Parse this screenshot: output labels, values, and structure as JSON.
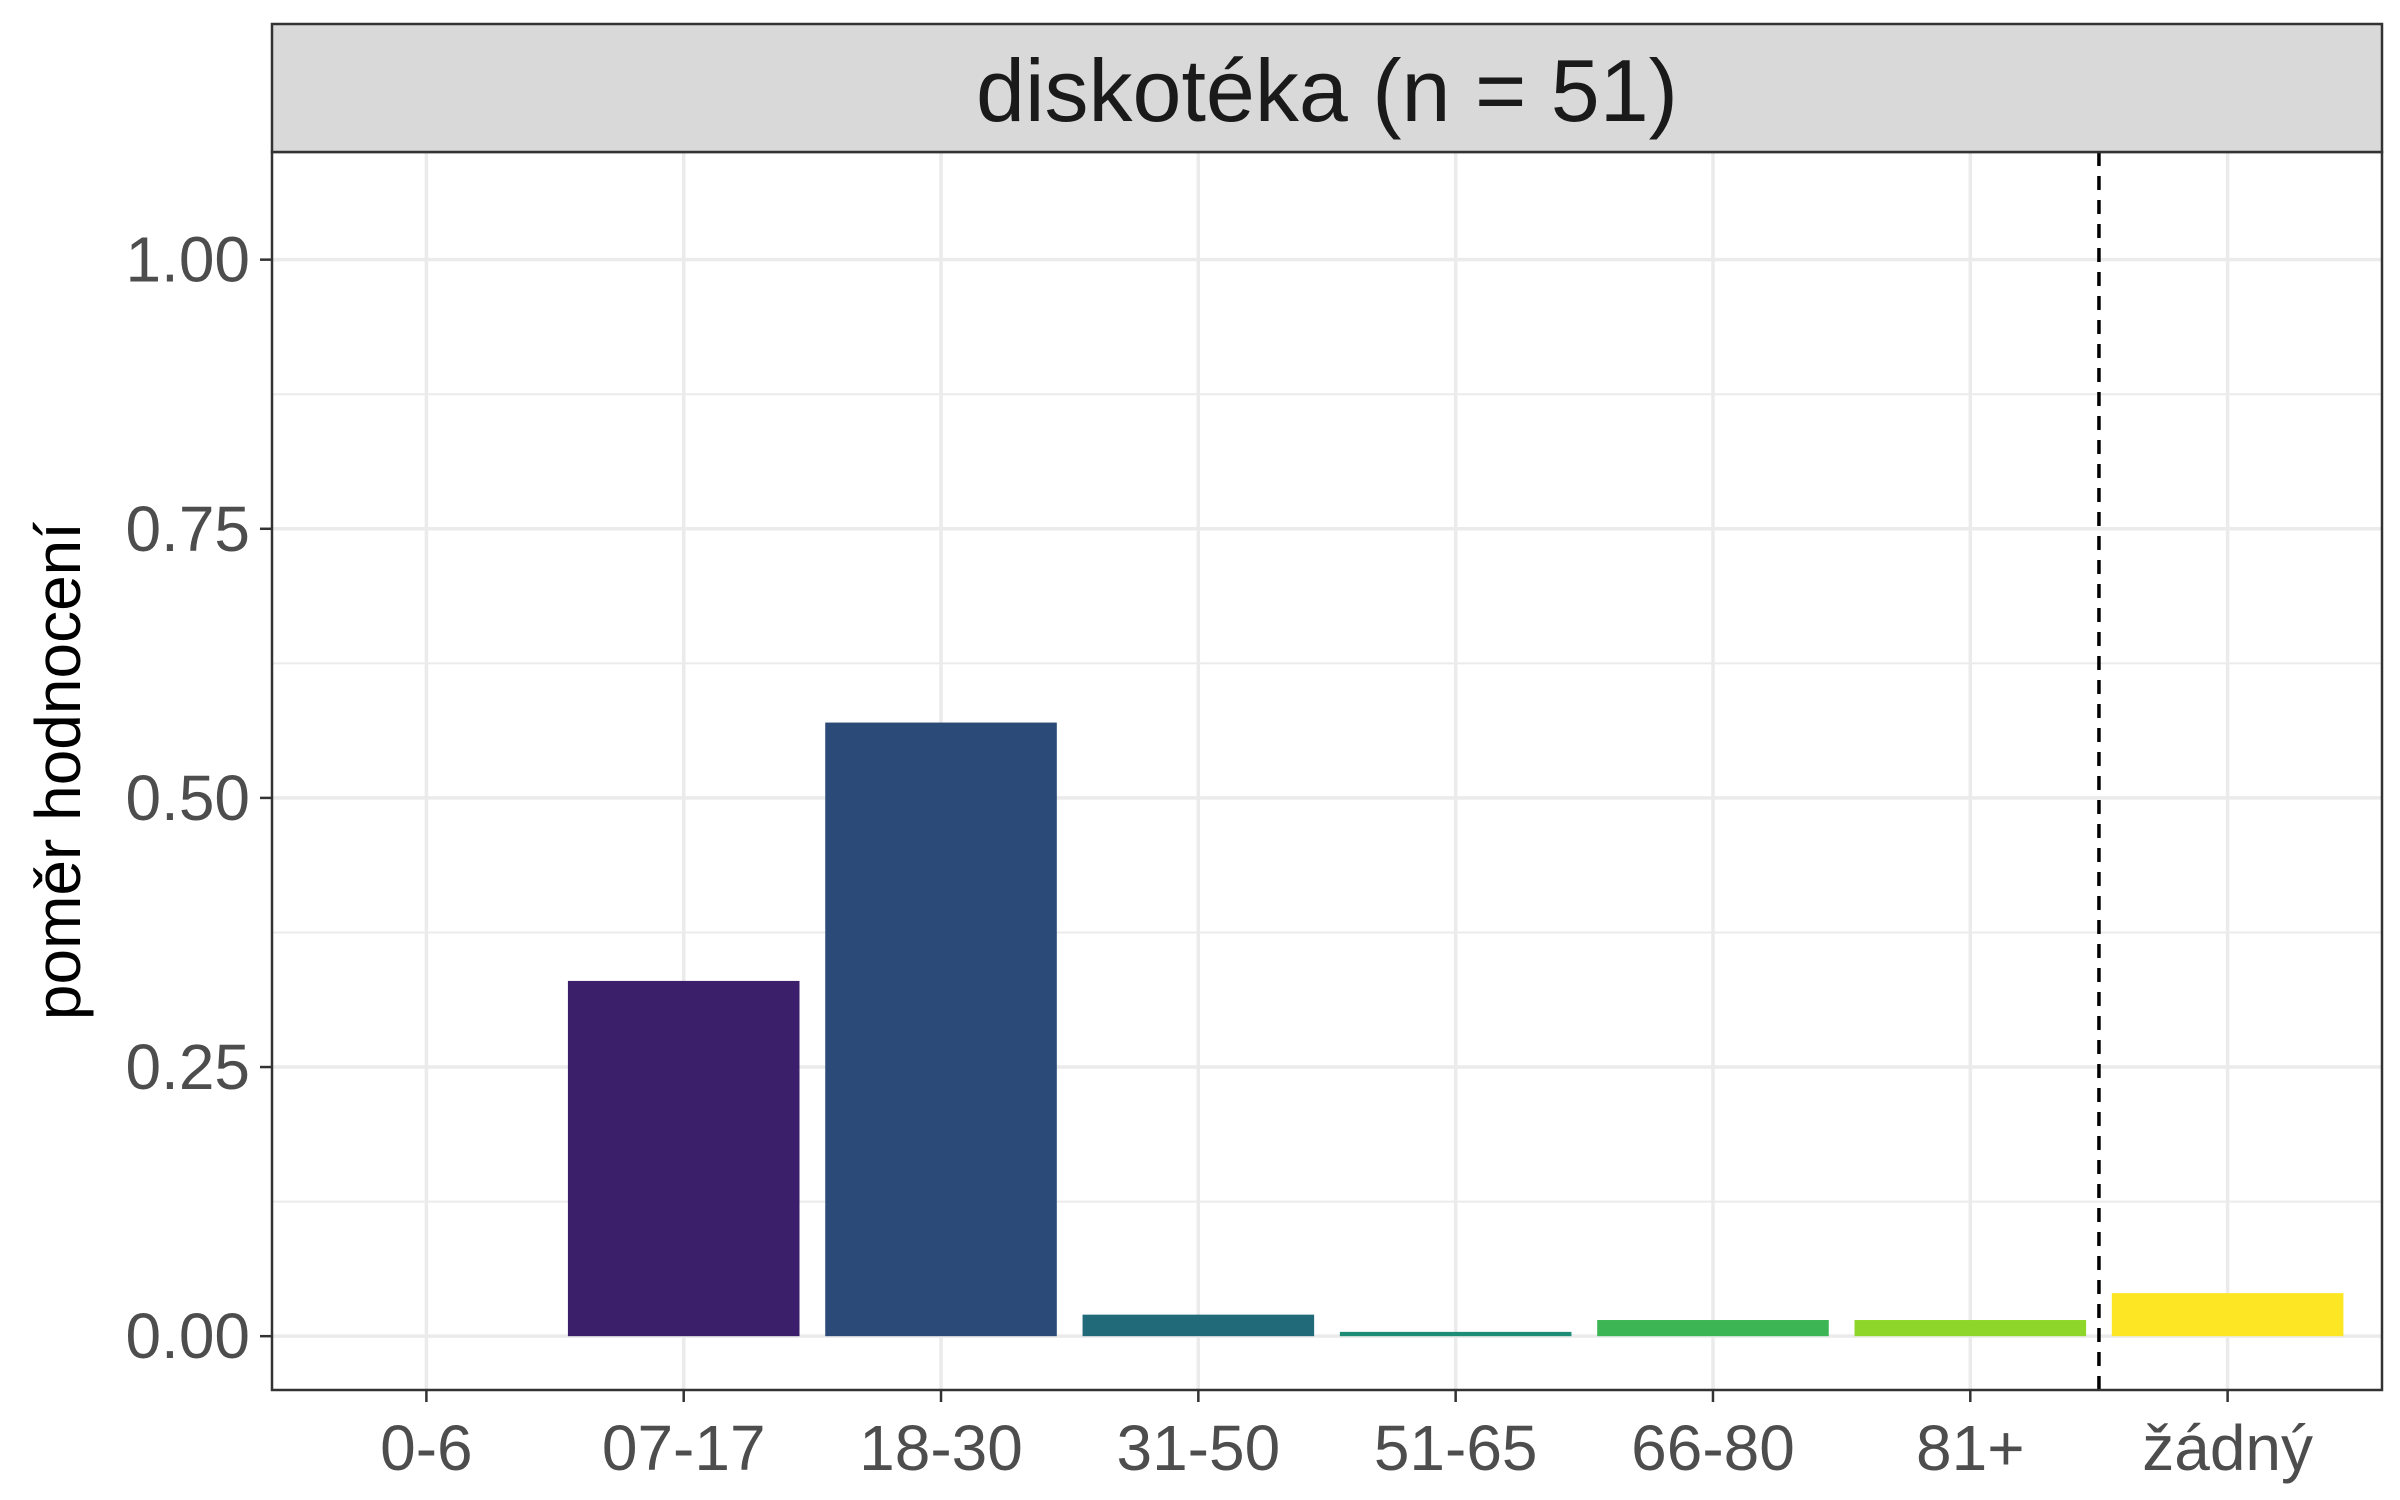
{
  "chart_data": {
    "type": "bar",
    "title": "diskotéka (n = 51)",
    "xlabel": "",
    "ylabel": "poměr hodnocení",
    "categories": [
      "0-6",
      "07-17",
      "18-30",
      "31-50",
      "51-65",
      "66-80",
      "81+",
      "žádný"
    ],
    "values": [
      0.0,
      0.33,
      0.57,
      0.02,
      0.004,
      0.015,
      0.015,
      0.04
    ],
    "colors": [
      "#440154",
      "#3b1f6b",
      "#2c4a78",
      "#216a7a",
      "#1f8c75",
      "#3cb554",
      "#8fd62a",
      "#fde725"
    ],
    "ylim": [
      -0.05,
      1.1
    ],
    "yticks": [
      0.0,
      0.25,
      0.5,
      0.75,
      1.0
    ],
    "ytick_labels": [
      "0.00",
      "0.25",
      "0.50",
      "0.75",
      "1.00"
    ],
    "reference_line": {
      "between": [
        "81+",
        "žádný"
      ],
      "style": "dashed"
    },
    "grid": true,
    "legend": "none"
  }
}
